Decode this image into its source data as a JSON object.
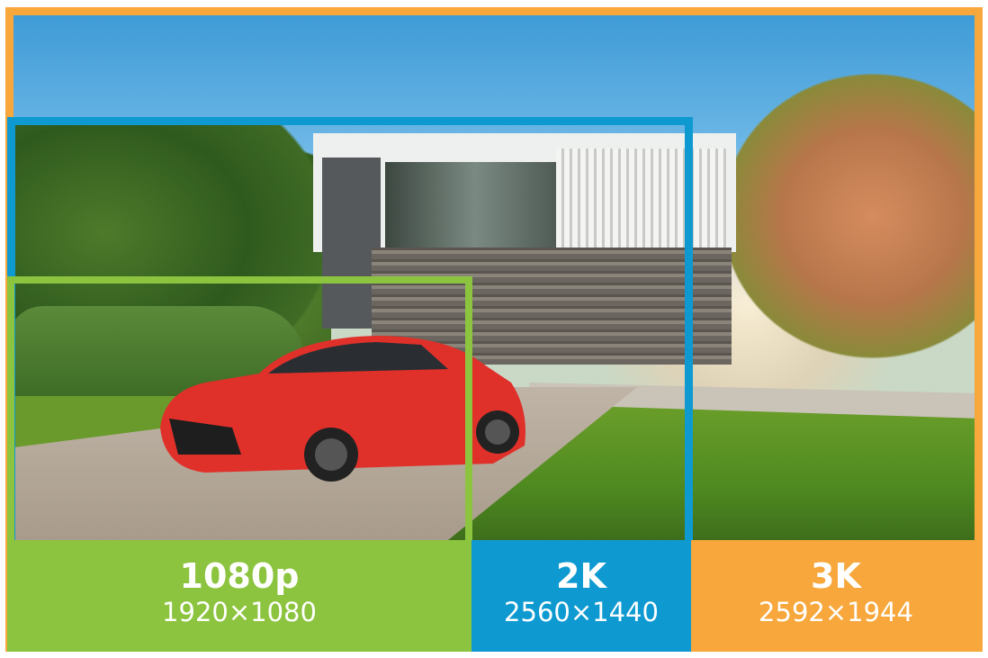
{
  "colors": {
    "1080p": "#8cc43f",
    "2k": "#0e9ad1",
    "3k": "#f7a73b"
  },
  "resolutions": [
    {
      "label": "1080p",
      "dimensions": "1920×1080"
    },
    {
      "label": "2K",
      "dimensions": "2560×1440"
    },
    {
      "label": "3K",
      "dimensions": "2592×1944"
    }
  ]
}
